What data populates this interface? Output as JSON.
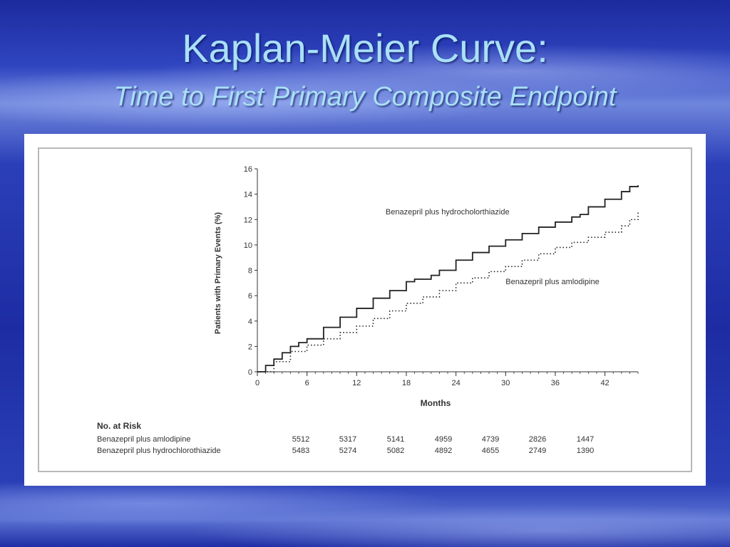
{
  "slide": {
    "title": "Kaplan-Meier Curve:",
    "subtitle": "Time to First Primary Composite Endpoint"
  },
  "chart_data": {
    "type": "line",
    "xlabel": "Months",
    "ylabel": "Patients with Primary Events (%)",
    "xlim": [
      0,
      46
    ],
    "ylim": [
      0,
      16
    ],
    "xticks": [
      0,
      6,
      12,
      18,
      24,
      30,
      36,
      42
    ],
    "yticks": [
      0,
      2,
      4,
      6,
      8,
      10,
      12,
      14,
      16
    ],
    "grid": false,
    "series": [
      {
        "name": "Benazepril plus hydrocholorthiazide",
        "style": "solid",
        "x": [
          0,
          1,
          2,
          3,
          4,
          5,
          6,
          8,
          10,
          12,
          14,
          16,
          18,
          19,
          21,
          22,
          24,
          26,
          28,
          30,
          32,
          34,
          36,
          38,
          39,
          40,
          42,
          44,
          45,
          46
        ],
        "y": [
          0,
          0.5,
          1.0,
          1.5,
          2.0,
          2.3,
          2.6,
          3.5,
          4.3,
          5.0,
          5.8,
          6.4,
          7.1,
          7.3,
          7.6,
          8.0,
          8.8,
          9.4,
          9.9,
          10.4,
          10.9,
          11.4,
          11.8,
          12.2,
          12.4,
          13.0,
          13.6,
          14.2,
          14.6,
          14.7
        ]
      },
      {
        "name": "Benazepril plus amlodipine",
        "style": "dotted",
        "x": [
          0,
          2,
          4,
          6,
          8,
          10,
          12,
          14,
          16,
          18,
          20,
          22,
          24,
          26,
          28,
          30,
          32,
          34,
          36,
          38,
          40,
          42,
          44,
          45,
          46
        ],
        "y": [
          0,
          0.8,
          1.6,
          2.1,
          2.6,
          3.1,
          3.6,
          4.2,
          4.8,
          5.4,
          5.9,
          6.4,
          7.0,
          7.4,
          7.9,
          8.3,
          8.8,
          9.3,
          9.8,
          10.2,
          10.6,
          11.0,
          11.5,
          12.0,
          12.6
        ]
      }
    ],
    "annotations": [
      {
        "text": "Benazepril plus hydrocholorthiazide",
        "x": 15.5,
        "y": 12.4
      },
      {
        "text": "Benazepril plus amlodipine",
        "x": 30,
        "y": 6.9
      }
    ]
  },
  "risk_table": {
    "title": "No. at Risk",
    "rows": [
      {
        "label": "Benazepril plus amlodipine",
        "values": [
          "5512",
          "5317",
          "5141",
          "4959",
          "4739",
          "2826",
          "1447"
        ]
      },
      {
        "label": "Benazepril plus hydrochlorothiazide",
        "values": [
          "5483",
          "5274",
          "5082",
          "4892",
          "4655",
          "2749",
          "1390"
        ]
      }
    ]
  }
}
